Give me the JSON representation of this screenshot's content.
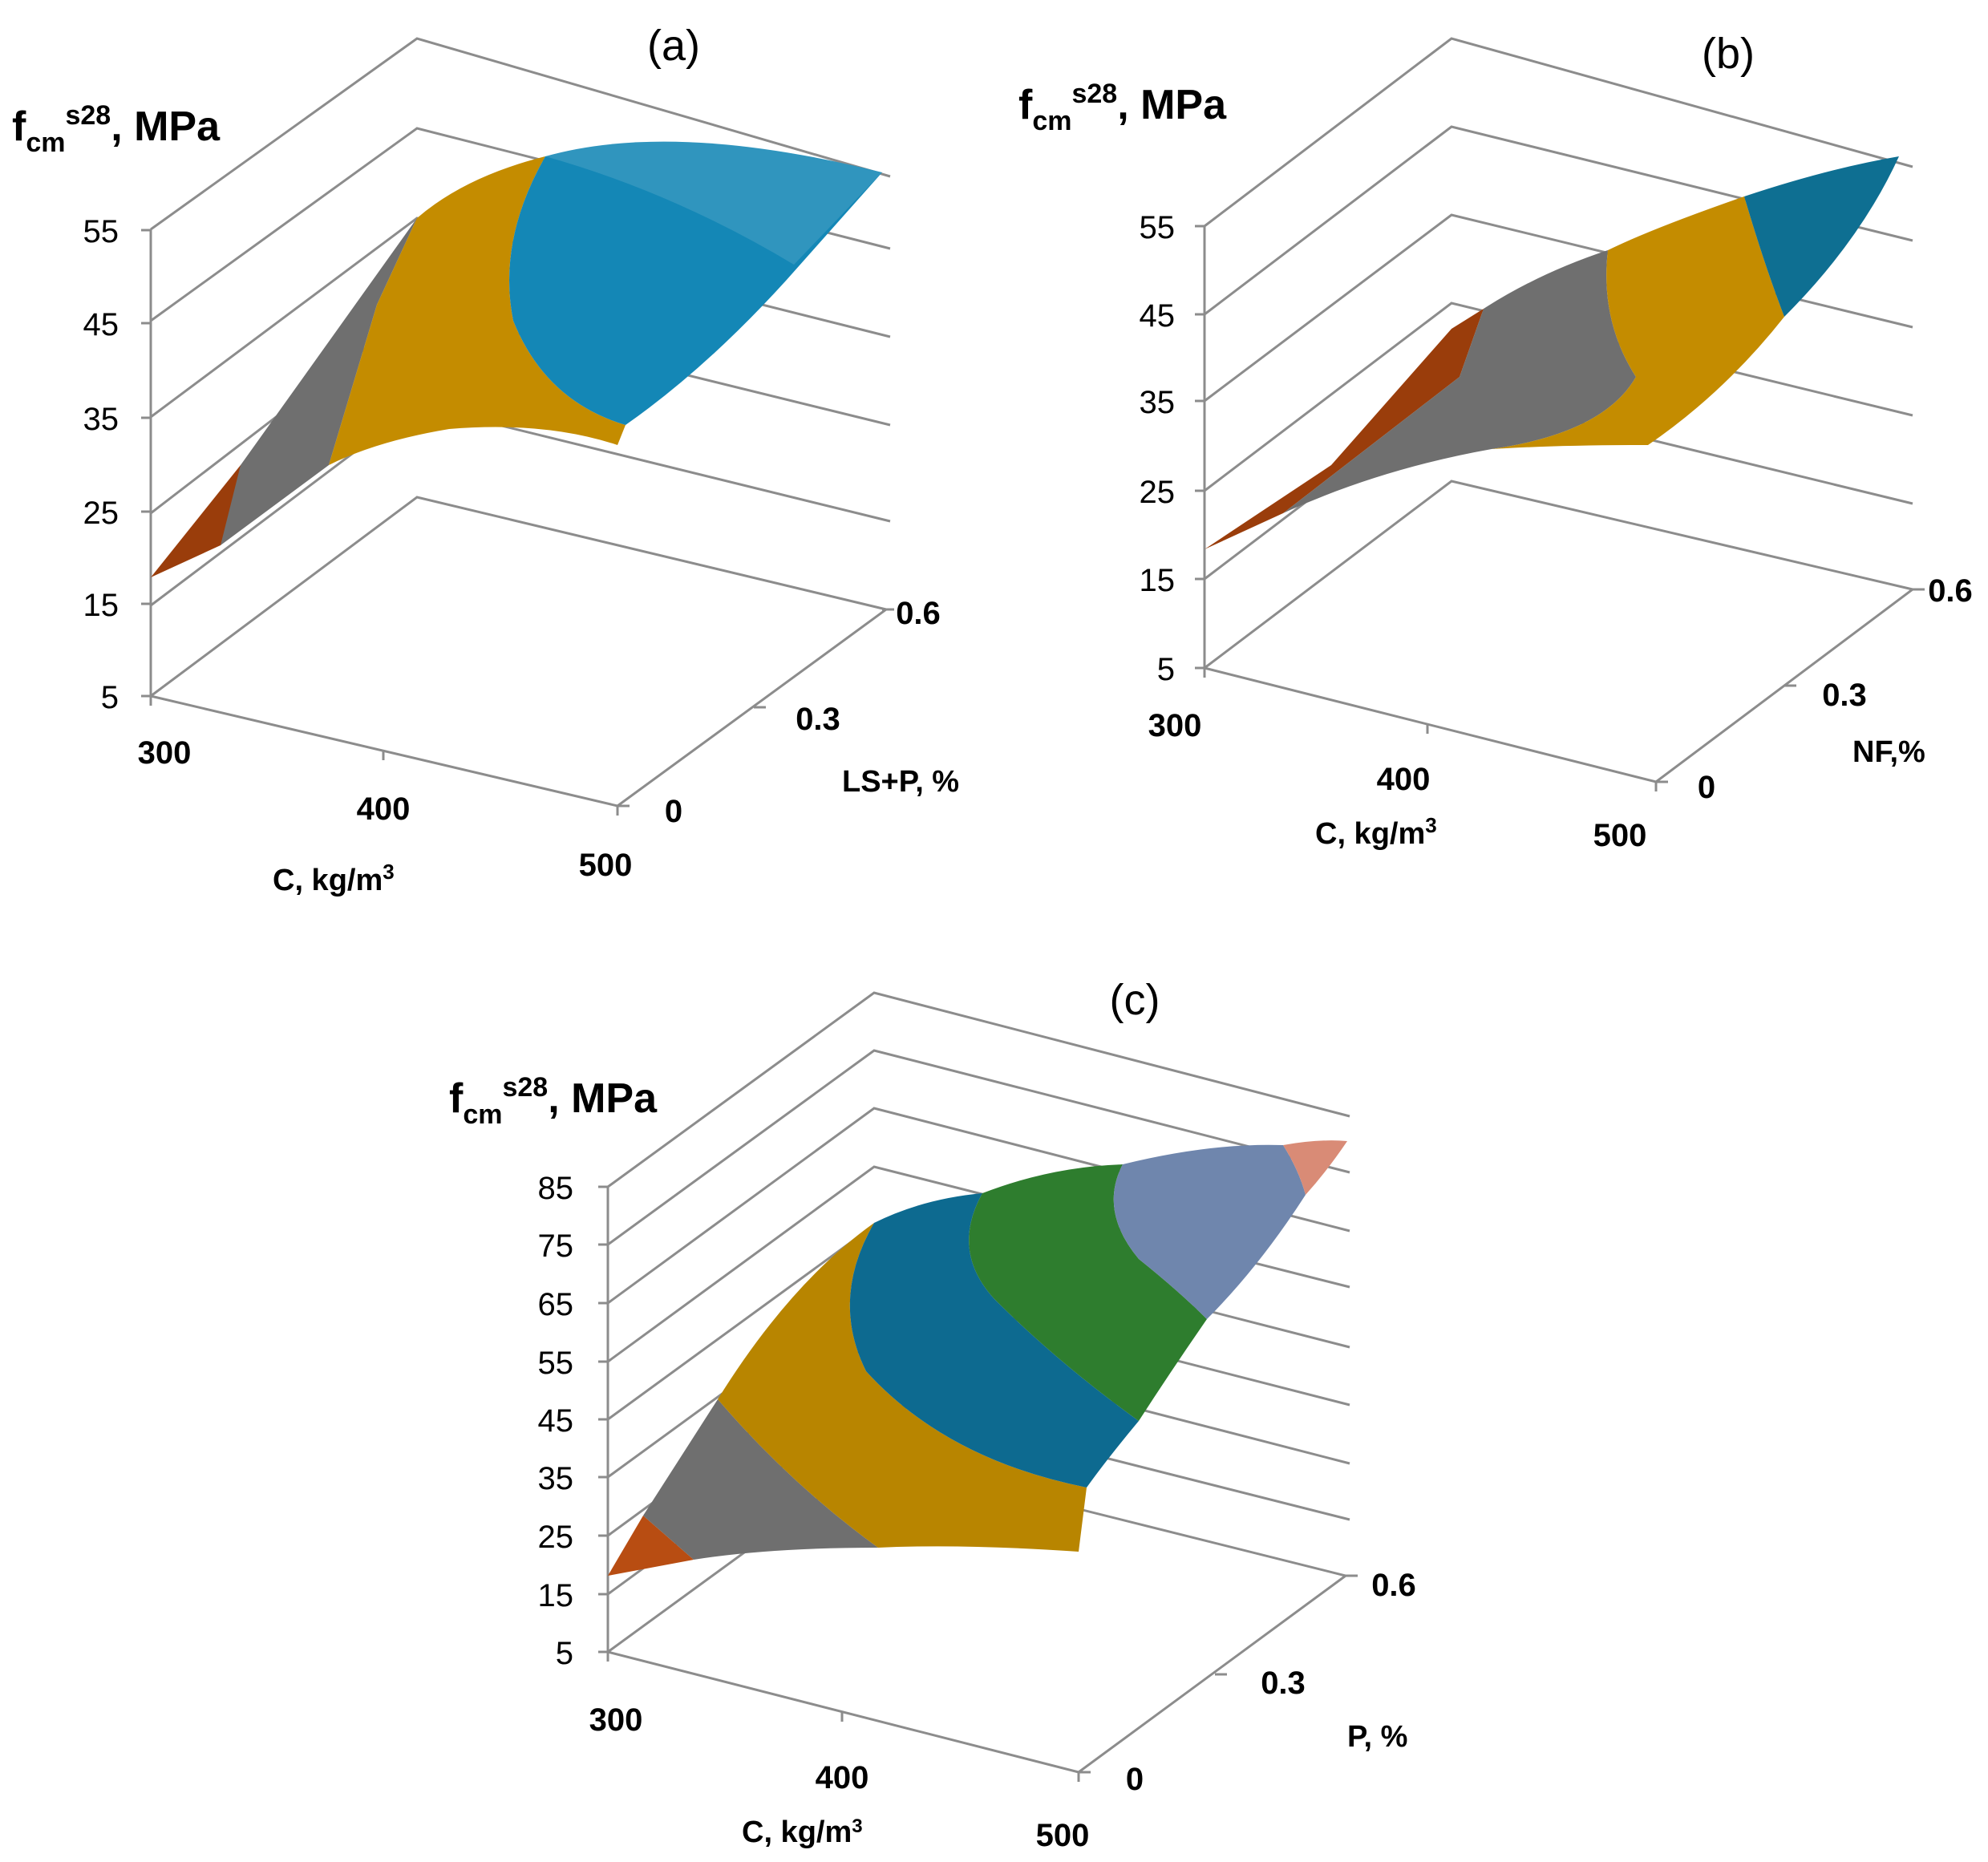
{
  "charts": [
    {
      "id": "a",
      "type": "surface3d",
      "title": "(a)",
      "zlabel": {
        "base": "f",
        "sub": "cm",
        "sup": "s28",
        "rest": ", MPa"
      },
      "xlabel": {
        "base": "C, kg/m",
        "sup": "3"
      },
      "ylabel": "LS+P, %",
      "z_ticks": [
        "5",
        "15",
        "25",
        "35",
        "45",
        "55"
      ],
      "x_ticks": [
        "300",
        "400",
        "500"
      ],
      "y_ticks": [
        "0",
        "0.3",
        "0.6"
      ],
      "zlim": [
        5,
        55
      ],
      "band_colors": [
        "#9a3d0b",
        "#6f6f6f",
        "#c48c00",
        "#1487b6"
      ],
      "bands": [
        {
          "from": 15,
          "to": 25
        },
        {
          "from": 25,
          "to": 35
        },
        {
          "from": 35,
          "to": 45
        },
        {
          "from": 45,
          "to": 55
        }
      ]
    },
    {
      "id": "b",
      "type": "surface3d",
      "title": "(b)",
      "zlabel": {
        "base": "f",
        "sub": "cm",
        "sup": "s28",
        "rest": ", MPa"
      },
      "xlabel": {
        "base": "C, kg/m",
        "sup": "3"
      },
      "ylabel": "NF,%",
      "z_ticks": [
        "5",
        "15",
        "25",
        "35",
        "45",
        "55"
      ],
      "x_ticks": [
        "300",
        "400",
        "500"
      ],
      "y_ticks": [
        "0",
        "0.3",
        "0.6"
      ],
      "zlim": [
        5,
        55
      ],
      "band_colors": [
        "#9a3d0b",
        "#6f6f6f",
        "#c48c00",
        "#0e6f92"
      ],
      "bands": [
        {
          "from": 15,
          "to": 25
        },
        {
          "from": 25,
          "to": 35
        },
        {
          "from": 35,
          "to": 45
        },
        {
          "from": 45,
          "to": 55
        }
      ]
    },
    {
      "id": "c",
      "type": "surface3d",
      "title": "(c)",
      "zlabel": {
        "base": "f",
        "sub": "cm",
        "sup": "s28",
        "rest": ", MPa"
      },
      "xlabel": {
        "base": "C, kg/m",
        "sup": "3"
      },
      "ylabel": "P, %",
      "z_ticks": [
        "5",
        "15",
        "25",
        "35",
        "45",
        "55",
        "65",
        "75",
        "85"
      ],
      "x_ticks": [
        "300",
        "400",
        "500"
      ],
      "y_ticks": [
        "0",
        "0.3",
        "0.6"
      ],
      "zlim": [
        5,
        85
      ],
      "band_colors": [
        "#b84d12",
        "#6f6f6f",
        "#b88500",
        "#0d6a90",
        "#2e7d2e",
        "#6f86ad",
        "#d98b76"
      ],
      "bands": [
        {
          "from": 15,
          "to": 25
        },
        {
          "from": 25,
          "to": 35
        },
        {
          "from": 35,
          "to": 45
        },
        {
          "from": 45,
          "to": 55
        },
        {
          "from": 55,
          "to": 65
        },
        {
          "from": 65,
          "to": 75
        },
        {
          "from": 75,
          "to": 85
        }
      ]
    }
  ]
}
